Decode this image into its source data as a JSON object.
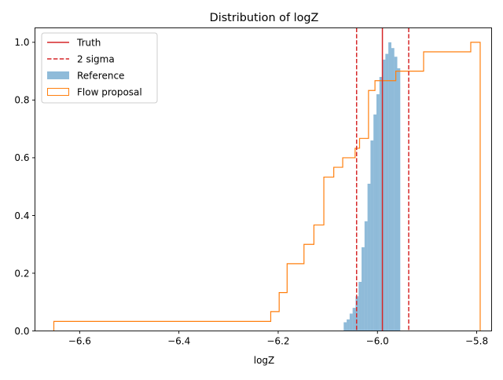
{
  "chart_data": {
    "type": "histogram",
    "title": "Distribution of logZ",
    "xlabel": "logZ",
    "ylabel": "",
    "xlim": [
      -6.69,
      -5.77
    ],
    "ylim": [
      0.0,
      1.05
    ],
    "grid": false,
    "legend_placement": "top-left",
    "x_ticks": [
      {
        "value": -6.6,
        "label": "−6.6"
      },
      {
        "value": -6.4,
        "label": "−6.4"
      },
      {
        "value": -6.2,
        "label": "−6.2"
      },
      {
        "value": -6.0,
        "label": "−6.0"
      },
      {
        "value": -5.8,
        "label": "−5.8"
      }
    ],
    "y_ticks": [
      {
        "value": 0.0,
        "label": "0.0"
      },
      {
        "value": 0.2,
        "label": "0.2"
      },
      {
        "value": 0.4,
        "label": "0.4"
      },
      {
        "value": 0.6,
        "label": "0.6"
      },
      {
        "value": 0.8,
        "label": "0.8"
      },
      {
        "value": 1.0,
        "label": "1.0"
      }
    ],
    "truth": {
      "name": "Truth",
      "x": -5.99,
      "color": "#d62728"
    },
    "sigma": {
      "name": "2 sigma",
      "x": [
        -6.042,
        -5.937
      ],
      "color": "#d62728"
    },
    "reference": {
      "name": "Reference",
      "color": "#1f77b4",
      "alpha": 0.5,
      "edges": [
        -6.068,
        -6.062,
        -6.056,
        -6.05,
        -6.044,
        -6.038,
        -6.032,
        -6.026,
        -6.02,
        -6.014,
        -6.008,
        -6.002,
        -5.996,
        -5.99,
        -5.984,
        -5.978,
        -5.972,
        -5.966,
        -5.96,
        -5.954
      ],
      "values": [
        0.03,
        0.04,
        0.06,
        0.08,
        0.12,
        0.17,
        0.29,
        0.38,
        0.51,
        0.66,
        0.75,
        0.82,
        0.88,
        0.94,
        0.96,
        1.0,
        0.98,
        0.95,
        0.91
      ]
    },
    "flow": {
      "name": "Flow proposal",
      "color": "#ff7f0e",
      "edges": [
        -6.652,
        -6.215,
        -6.198,
        -6.182,
        -6.148,
        -6.128,
        -6.108,
        -6.088,
        -6.07,
        -6.063,
        -6.045,
        -6.036,
        -6.018,
        -6.005,
        -5.988,
        -5.963,
        -5.955,
        -5.907,
        -5.812,
        -5.793
      ],
      "values": [
        0.033,
        0.067,
        0.133,
        0.233,
        0.3,
        0.367,
        0.533,
        0.567,
        0.6,
        0.6,
        0.633,
        0.667,
        0.833,
        0.867,
        0.867,
        0.9,
        0.9,
        0.967,
        1.0
      ]
    }
  }
}
